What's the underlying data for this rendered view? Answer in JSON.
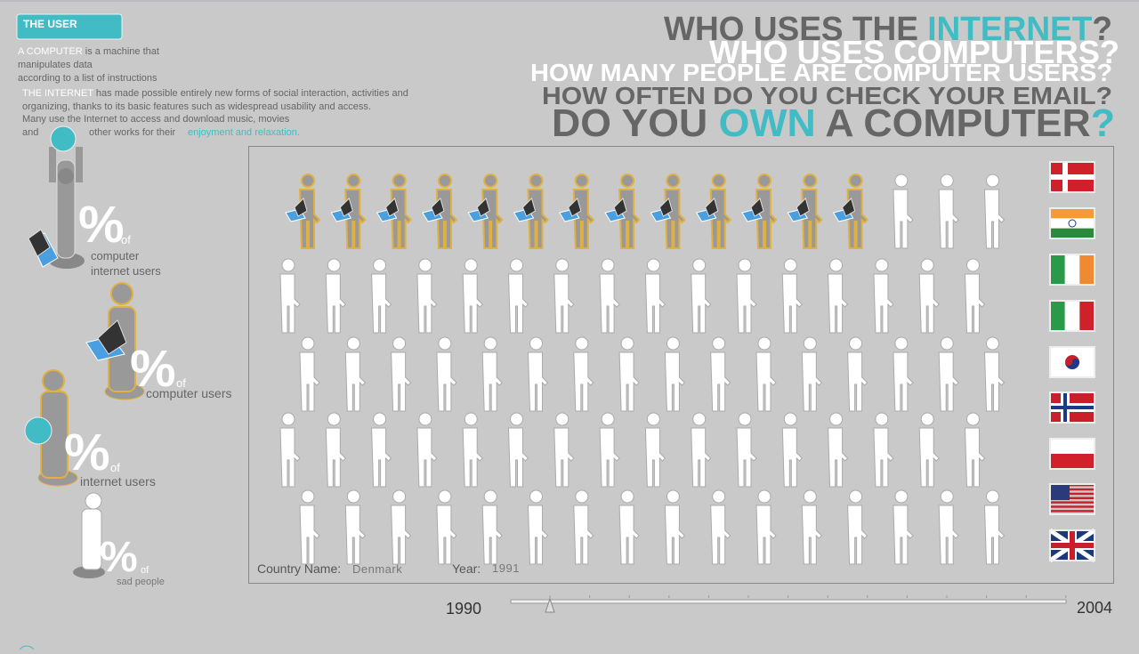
{
  "header": {
    "tag": "THE USER",
    "intro": [
      {
        "lead": "A COMPUTER",
        "text": " is a machine that"
      },
      {
        "text": "manipulates data"
      },
      {
        "text": "according to a list of instructions"
      }
    ],
    "internet": [
      {
        "lead": "THE INTERNET",
        "text": " has made possible entirely new forms of social interaction, activities and"
      },
      {
        "text": "organizing, thanks to its basic features such as widespread usability and access."
      },
      {
        "text": "Many use the Internet to access and download music, movies"
      },
      {
        "text": "and",
        "middle": "other works for their",
        "accent": "enjoyment and relaxation."
      }
    ]
  },
  "questions": [
    [
      "WHO USES THE ",
      "INTERNET",
      "?"
    ],
    [
      "WHO USES COMPUTERS?"
    ],
    [
      "HOW MANY PEOPLE ARE COMPUTER USERS?"
    ],
    [
      "HOW OFTEN DO YOU CHECK YOUR EMAIL?"
    ],
    [
      "DO YOU ",
      "OWN",
      " A COMPUTER",
      "?"
    ]
  ],
  "legend": [
    {
      "percent": "%",
      "of": "of",
      "label": [
        "computer",
        "internet users"
      ]
    },
    {
      "percent": "%",
      "of": "of",
      "label": [
        "computer users"
      ]
    },
    {
      "percent": "%",
      "of": "of",
      "label": [
        "internet users"
      ]
    },
    {
      "percent": "%",
      "of": "of",
      "label": [
        "sad people"
      ]
    }
  ],
  "status": {
    "country_label": "Country Name:",
    "country": "Denmark",
    "year_label": "Year:",
    "year": "1991"
  },
  "slider": {
    "start": "1990",
    "end": "2004"
  }
}
